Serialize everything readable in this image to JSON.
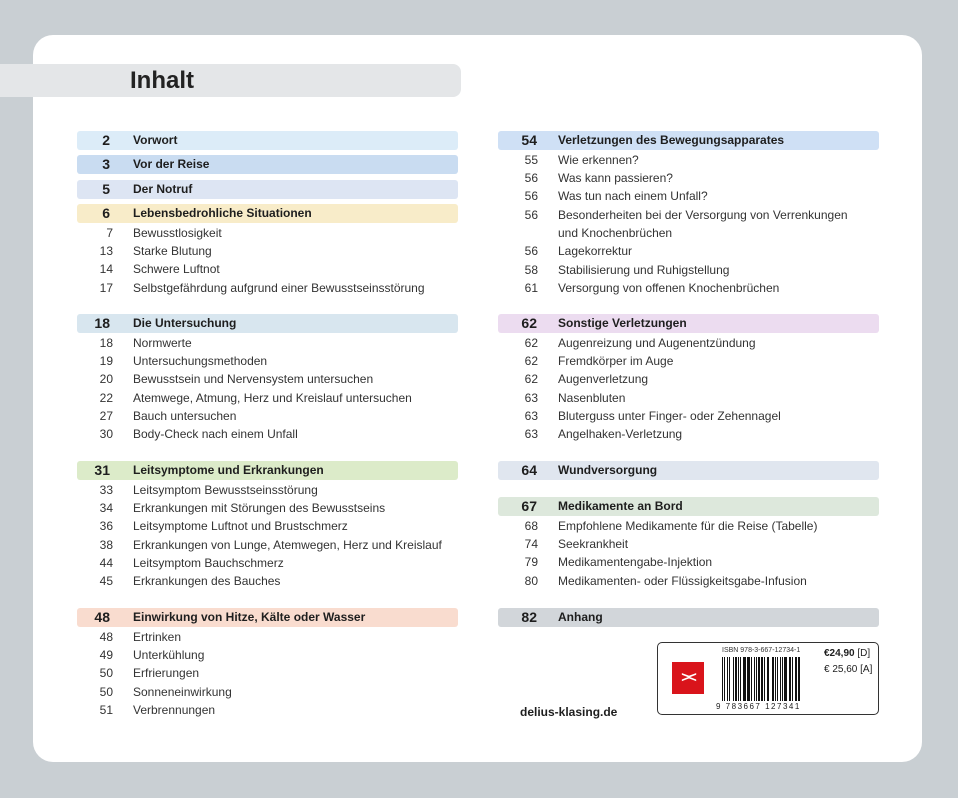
{
  "title": "Inhalt",
  "left": [
    {
      "num": "2",
      "label": "Vorwort",
      "color": "#dcecf8",
      "items": []
    },
    {
      "num": "3",
      "label": "Vor der Reise",
      "color": "#c9dcf1",
      "items": []
    },
    {
      "num": "5",
      "label": "Der Notruf",
      "color": "#dde5f3",
      "items": []
    },
    {
      "num": "6",
      "label": "Lebensbedrohliche Situationen",
      "color": "#f8ecc9",
      "items": [
        {
          "num": "7",
          "label": "Bewusstlosigkeit"
        },
        {
          "num": "13",
          "label": "Starke Blutung"
        },
        {
          "num": "14",
          "label": "Schwere Luftnot"
        },
        {
          "num": "17",
          "label": "Selbstgefährdung aufgrund einer Bewusstseinsstörung"
        }
      ]
    },
    {
      "num": "18",
      "label": "Die Untersuchung",
      "color": "#d8e6ef",
      "items": [
        {
          "num": "18",
          "label": "Normwerte"
        },
        {
          "num": "19",
          "label": "Untersuchungsmethoden"
        },
        {
          "num": "20",
          "label": "Bewusstsein und Nervensystem untersuchen"
        },
        {
          "num": "22",
          "label": "Atemwege, Atmung, Herz und Kreislauf untersuchen"
        },
        {
          "num": "27",
          "label": "Bauch untersuchen"
        },
        {
          "num": "30",
          "label": "Body-Check nach einem Unfall"
        }
      ]
    },
    {
      "num": "31",
      "label": "Leitsymptome und Erkrankungen",
      "color": "#dcebc9",
      "items": [
        {
          "num": "33",
          "label": "Leitsymptom Bewusstseinsstörung"
        },
        {
          "num": "34",
          "label": "Erkrankungen mit Störungen des Bewusstseins"
        },
        {
          "num": "36",
          "label": "Leitsymptome Luftnot und Brustschmerz"
        },
        {
          "num": "38",
          "label": "Erkrankungen von Lunge, Atemwegen, Herz und Kreislauf"
        },
        {
          "num": "44",
          "label": "Leitsymptom Bauchschmerz"
        },
        {
          "num": "45",
          "label": "Erkrankungen des Bauches"
        }
      ]
    },
    {
      "num": "48",
      "label": "Einwirkung von Hitze, Kälte oder Wasser",
      "color": "#f9dccf",
      "items": [
        {
          "num": "48",
          "label": "Ertrinken"
        },
        {
          "num": "49",
          "label": "Unterkühlung"
        },
        {
          "num": "50",
          "label": "Erfrierungen"
        },
        {
          "num": "50",
          "label": "Sonneneinwirkung"
        },
        {
          "num": "51",
          "label": "Verbrennungen"
        }
      ]
    }
  ],
  "right": [
    {
      "num": "54",
      "label": "Verletzungen des Bewegungsapparates",
      "color": "#cfe0f5",
      "items": [
        {
          "num": "55",
          "label": "Wie erkennen?"
        },
        {
          "num": "56",
          "label": "Was kann passieren?"
        },
        {
          "num": "56",
          "label": "Was tun nach einem Unfall?"
        },
        {
          "num": "56",
          "label": "Besonderheiten bei der Versorgung von Verrenkungen"
        },
        {
          "num": "",
          "label": "und Knochenbrüchen"
        },
        {
          "num": "56",
          "label": "Lagekorrektur"
        },
        {
          "num": "58",
          "label": "Stabilisierung und Ruhigstellung"
        },
        {
          "num": "61",
          "label": "Versorgung von offenen Knochenbrüchen"
        }
      ]
    },
    {
      "num": "62",
      "label": "Sonstige Verletzungen",
      "color": "#ecdcf0",
      "items": [
        {
          "num": "62",
          "label": "Augenreizung und Augenentzündung"
        },
        {
          "num": "62",
          "label": "Fremdkörper im Auge"
        },
        {
          "num": "62",
          "label": "Augenverletzung"
        },
        {
          "num": "63",
          "label": "Nasenbluten"
        },
        {
          "num": "63",
          "label": "Bluterguss unter Finger- oder Zehennagel"
        },
        {
          "num": "63",
          "label": "Angelhaken-Verletzung"
        }
      ]
    },
    {
      "num": "64",
      "label": "Wundversorgung",
      "color": "#e0e6ef",
      "items": []
    },
    {
      "num": "67",
      "label": "Medikamente an Bord",
      "color": "#dde8dc",
      "items": [
        {
          "num": "68",
          "label": "Empfohlene Medikamente für die Reise (Tabelle)"
        },
        {
          "num": "74",
          "label": "Seekrankheit"
        },
        {
          "num": "79",
          "label": "Medikamentengabe-Injektion"
        },
        {
          "num": "80",
          "label": "Medikamenten- oder Flüssigkeitsgabe-Infusion"
        }
      ]
    },
    {
      "num": "82",
      "label": "Anhang",
      "color": "#d2d6da",
      "items": []
    }
  ],
  "barcode": {
    "isbn": "ISBN 978-3-667-12734-1",
    "digits": "9 783667 127341",
    "price_d": "€24,90",
    "price_d_suffix": "[D]",
    "price_a": "€ 25,60 [A]",
    "logo_icon": "delius-klasing-logo",
    "logo_color": "#d9141b"
  },
  "website": "delius-klasing.de"
}
